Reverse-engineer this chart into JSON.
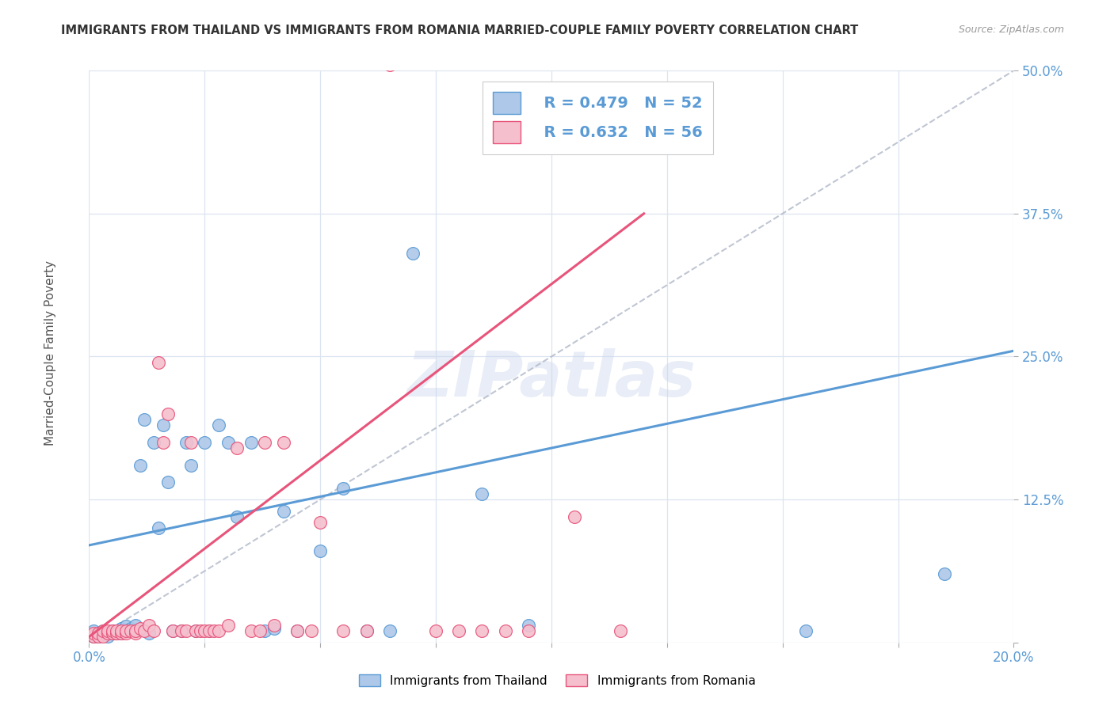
{
  "title": "IMMIGRANTS FROM THAILAND VS IMMIGRANTS FROM ROMANIA MARRIED-COUPLE FAMILY POVERTY CORRELATION CHART",
  "source": "Source: ZipAtlas.com",
  "ylabel": "Married-Couple Family Poverty",
  "xlim": [
    0.0,
    0.2
  ],
  "ylim": [
    0.0,
    0.5
  ],
  "xticks": [
    0.0,
    0.025,
    0.05,
    0.075,
    0.1,
    0.125,
    0.15,
    0.175,
    0.2
  ],
  "yticks": [
    0.0,
    0.125,
    0.25,
    0.375,
    0.5
  ],
  "legend_R_thailand": "R = 0.479",
  "legend_N_thailand": "N = 52",
  "legend_R_romania": "R = 0.632",
  "legend_N_romania": "N = 56",
  "color_thailand_face": "#adc8e8",
  "color_thailand_edge": "#5b9bd5",
  "color_romania_face": "#f5bfce",
  "color_romania_edge": "#e8547a",
  "color_trend_thailand": "#5b9bd5",
  "color_trend_romania": "#e8547a",
  "color_diagonal": "#b0b8c8",
  "watermark": "ZIPatlas",
  "thailand_x": [
    0.001,
    0.001,
    0.002,
    0.002,
    0.003,
    0.003,
    0.004,
    0.004,
    0.005,
    0.005,
    0.006,
    0.006,
    0.007,
    0.007,
    0.007,
    0.008,
    0.008,
    0.009,
    0.009,
    0.01,
    0.01,
    0.011,
    0.012,
    0.013,
    0.014,
    0.015,
    0.016,
    0.017,
    0.018,
    0.02,
    0.021,
    0.022,
    0.023,
    0.025,
    0.026,
    0.028,
    0.03,
    0.032,
    0.035,
    0.038,
    0.04,
    0.042,
    0.045,
    0.05,
    0.055,
    0.06,
    0.065,
    0.07,
    0.085,
    0.095,
    0.155,
    0.185
  ],
  "thailand_y": [
    0.005,
    0.01,
    0.008,
    0.005,
    0.008,
    0.01,
    0.005,
    0.008,
    0.01,
    0.008,
    0.008,
    0.01,
    0.01,
    0.008,
    0.012,
    0.01,
    0.014,
    0.012,
    0.01,
    0.015,
    0.01,
    0.155,
    0.195,
    0.008,
    0.175,
    0.1,
    0.19,
    0.14,
    0.01,
    0.01,
    0.175,
    0.155,
    0.01,
    0.175,
    0.01,
    0.19,
    0.175,
    0.11,
    0.175,
    0.01,
    0.012,
    0.115,
    0.01,
    0.08,
    0.135,
    0.01,
    0.01,
    0.34,
    0.13,
    0.015,
    0.01,
    0.06
  ],
  "romania_x": [
    0.001,
    0.001,
    0.002,
    0.002,
    0.003,
    0.003,
    0.004,
    0.004,
    0.005,
    0.005,
    0.006,
    0.006,
    0.007,
    0.007,
    0.008,
    0.008,
    0.009,
    0.01,
    0.01,
    0.011,
    0.012,
    0.013,
    0.014,
    0.015,
    0.016,
    0.017,
    0.018,
    0.02,
    0.021,
    0.022,
    0.023,
    0.024,
    0.025,
    0.026,
    0.027,
    0.028,
    0.03,
    0.032,
    0.035,
    0.037,
    0.038,
    0.04,
    0.042,
    0.045,
    0.048,
    0.05,
    0.055,
    0.06,
    0.065,
    0.075,
    0.08,
    0.085,
    0.09,
    0.095,
    0.105,
    0.115
  ],
  "romania_y": [
    0.005,
    0.008,
    0.005,
    0.008,
    0.005,
    0.01,
    0.008,
    0.01,
    0.008,
    0.01,
    0.008,
    0.01,
    0.008,
    0.01,
    0.008,
    0.01,
    0.01,
    0.008,
    0.01,
    0.012,
    0.01,
    0.015,
    0.01,
    0.245,
    0.175,
    0.2,
    0.01,
    0.01,
    0.01,
    0.175,
    0.01,
    0.01,
    0.01,
    0.01,
    0.01,
    0.01,
    0.015,
    0.17,
    0.01,
    0.01,
    0.175,
    0.015,
    0.175,
    0.01,
    0.01,
    0.105,
    0.01,
    0.01,
    0.505,
    0.01,
    0.01,
    0.01,
    0.01,
    0.01,
    0.11,
    0.01
  ],
  "th_trend_x0": 0.0,
  "th_trend_y0": 0.085,
  "th_trend_x1": 0.2,
  "th_trend_y1": 0.255,
  "ro_trend_x0": 0.0,
  "ro_trend_y0": 0.005,
  "ro_trend_x1": 0.12,
  "ro_trend_y1": 0.375
}
